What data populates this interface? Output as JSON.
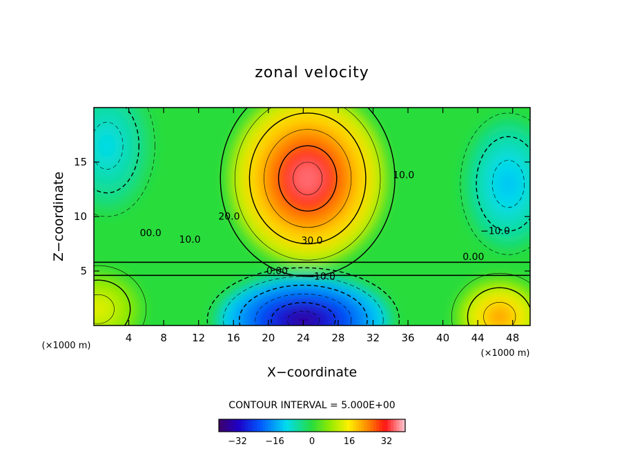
{
  "chart_data": {
    "type": "heatmap",
    "title": "zonal velocity",
    "xlabel": "X−coordinate",
    "ylabel": "Z−coordinate",
    "x_unit_left": "(×1000 m)",
    "x_unit_right": "(×1000 m)",
    "xlim": [
      0,
      50
    ],
    "ylim": [
      0,
      20
    ],
    "x_ticks": [
      4,
      8,
      12,
      16,
      20,
      24,
      28,
      32,
      36,
      40,
      44,
      48
    ],
    "y_ticks": [
      5,
      10,
      15
    ],
    "value_range": [
      -40,
      40
    ],
    "contour_interval_text": "CONTOUR INTERVAL = 5.000E+00",
    "colorbar_ticks": [
      -32,
      -16,
      0,
      16,
      32
    ],
    "colorbar_tick_labels": [
      "−32",
      "−16",
      "0",
      "16",
      "32"
    ],
    "contour_labels": [
      {
        "text": "20.0",
        "x": 15.5,
        "y": 9.7
      },
      {
        "text": "30.0",
        "x": 25.0,
        "y": 7.5
      },
      {
        "text": "10.0",
        "x": 11.0,
        "y": 7.6
      },
      {
        "text": "00.0",
        "x": 6.5,
        "y": 8.2
      },
      {
        "text": "10.0",
        "x": 35.5,
        "y": 13.5
      },
      {
        "text": "−10.0",
        "x": 46.0,
        "y": 8.4
      },
      {
        "text": "0.00",
        "x": 43.5,
        "y": 6.0
      },
      {
        "text": "0.00",
        "x": 21.0,
        "y": 4.7
      },
      {
        "text": "−10.0",
        "x": 26.0,
        "y": 4.2
      }
    ],
    "features": [
      {
        "name": "upper jet core",
        "x": 24.5,
        "y": 13.5,
        "value": 40
      },
      {
        "name": "lower return flow",
        "x": 24.0,
        "y": 0.5,
        "value": -40
      },
      {
        "name": "lower-left positive",
        "x": 0.5,
        "y": 1.5,
        "value": 16
      },
      {
        "name": "lower-right positive",
        "x": 46.5,
        "y": 0.8,
        "value": 26
      },
      {
        "name": "upper-left negative",
        "x": 1.5,
        "y": 16.5,
        "value": -12
      },
      {
        "name": "upper-right negative",
        "x": 47.5,
        "y": 13.0,
        "value": -15
      }
    ],
    "grid": false,
    "colormap": "rainbow (purple-blue-cyan-green-yellow-red-pink)"
  }
}
